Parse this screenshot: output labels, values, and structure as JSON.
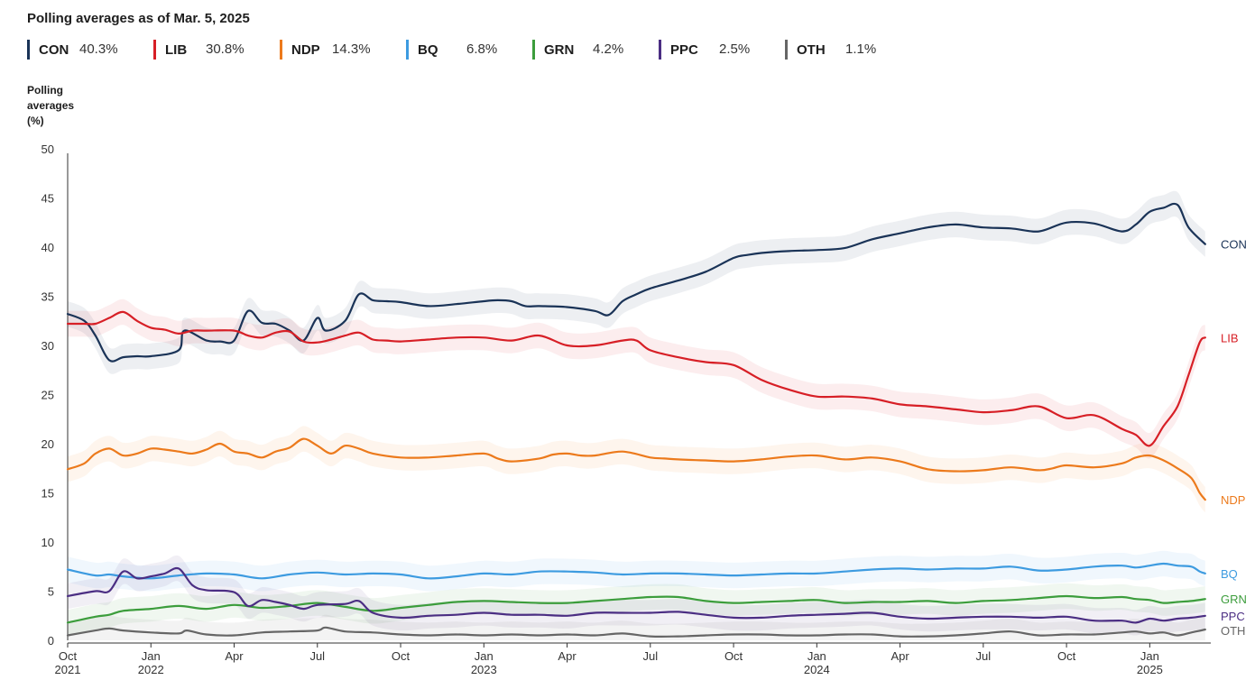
{
  "title": "Polling averages as of Mar. 5, 2025",
  "ylabel_lines": [
    "Polling",
    "averages",
    "(%)"
  ],
  "legend": [
    {
      "code": "CON",
      "value": "40.3%",
      "color": "#1a3357"
    },
    {
      "code": "LIB",
      "value": "30.8%",
      "color": "#d71f26"
    },
    {
      "code": "NDP",
      "value": "14.3%",
      "color": "#ec7a1c"
    },
    {
      "code": "BQ",
      "value": "6.8%",
      "color": "#3d9be0"
    },
    {
      "code": "GRN",
      "value": "4.2%",
      "color": "#3c9d3c"
    },
    {
      "code": "PPC",
      "value": "2.5%",
      "color": "#4b2e83"
    },
    {
      "code": "OTH",
      "value": "1.1%",
      "color": "#666666"
    }
  ],
  "chart_data": {
    "type": "line",
    "title": "Polling averages as of Mar. 5, 2025",
    "ylabel": "Polling averages (%)",
    "ylim": [
      0,
      50
    ],
    "yticks": [
      "0",
      "5",
      "10",
      "15",
      "20",
      "25",
      "30",
      "35",
      "40",
      "45",
      "50"
    ],
    "xlim": [
      0,
      41.2
    ],
    "xticks": [
      {
        "pos": 0,
        "line1": "Oct",
        "line2": "2021"
      },
      {
        "pos": 3,
        "line1": "Jan",
        "line2": "2022"
      },
      {
        "pos": 6,
        "line1": "Apr",
        "line2": ""
      },
      {
        "pos": 9,
        "line1": "Jul",
        "line2": ""
      },
      {
        "pos": 12,
        "line1": "Oct",
        "line2": ""
      },
      {
        "pos": 15,
        "line1": "Jan",
        "line2": "2023"
      },
      {
        "pos": 18,
        "line1": "Apr",
        "line2": ""
      },
      {
        "pos": 21,
        "line1": "Jul",
        "line2": ""
      },
      {
        "pos": 24,
        "line1": "Oct",
        "line2": ""
      },
      {
        "pos": 27,
        "line1": "Jan",
        "line2": "2024"
      },
      {
        "pos": 30,
        "line1": "Apr",
        "line2": ""
      },
      {
        "pos": 33,
        "line1": "Jul",
        "line2": ""
      },
      {
        "pos": 36,
        "line1": "Oct",
        "line2": ""
      },
      {
        "pos": 39,
        "line1": "Jan",
        "line2": "2025"
      }
    ],
    "x_unit": "months since Oct 2021",
    "band_half_width": 1.3,
    "series": [
      {
        "name": "CON",
        "color": "#1a3357",
        "x": [
          0,
          0.6,
          1.0,
          1.5,
          2.0,
          2.5,
          3.0,
          4.0,
          4.2,
          5.0,
          5.5,
          6.0,
          6.5,
          7.0,
          7.5,
          8.0,
          8.5,
          9.0,
          9.3,
          10.0,
          10.5,
          11.0,
          11.5,
          12.0,
          13.0,
          14.0,
          15.0,
          15.5,
          16.0,
          16.5,
          17.0,
          18.0,
          19.0,
          19.5,
          20.0,
          20.5,
          21.0,
          22.0,
          23.0,
          24.0,
          24.5,
          25.0,
          26.0,
          27.0,
          28.0,
          29.0,
          30.0,
          31.0,
          32.0,
          33.0,
          34.0,
          35.0,
          36.0,
          37.0,
          38.0,
          38.5,
          39.0,
          39.5,
          40.0,
          40.4,
          41.0
        ],
        "values": [
          33.2,
          32.5,
          31.0,
          28.5,
          28.8,
          28.9,
          28.9,
          29.5,
          31.5,
          30.5,
          30.4,
          30.5,
          33.5,
          32.3,
          32.2,
          31.5,
          30.5,
          32.8,
          31.5,
          32.5,
          35.2,
          34.6,
          34.5,
          34.4,
          34.0,
          34.2,
          34.5,
          34.6,
          34.5,
          34.0,
          34.0,
          33.9,
          33.5,
          33.1,
          34.5,
          35.2,
          35.8,
          36.6,
          37.5,
          38.9,
          39.2,
          39.4,
          39.6,
          39.7,
          39.9,
          40.8,
          41.4,
          42.0,
          42.3,
          42.0,
          41.9,
          41.6,
          42.5,
          42.4,
          41.6,
          42.3,
          43.6,
          44.0,
          44.3,
          42.0,
          40.3
        ]
      },
      {
        "name": "LIB",
        "color": "#d71f26",
        "x": [
          0,
          0.6,
          1.0,
          1.5,
          2.0,
          2.5,
          3.0,
          3.5,
          4.0,
          4.5,
          5.0,
          6.0,
          6.5,
          7.0,
          7.5,
          8.0,
          8.5,
          9.0,
          9.5,
          10.0,
          10.5,
          11.0,
          11.5,
          12.0,
          13.0,
          14.0,
          15.0,
          16.0,
          17.0,
          18.0,
          19.0,
          20.0,
          20.5,
          21.0,
          22.0,
          23.0,
          24.0,
          25.0,
          26.0,
          27.0,
          28.0,
          29.0,
          30.0,
          31.0,
          32.0,
          33.0,
          34.0,
          35.0,
          36.0,
          37.0,
          38.0,
          38.5,
          39.0,
          39.5,
          40.0,
          40.4,
          40.8,
          41.0
        ],
        "values": [
          32.2,
          32.2,
          32.2,
          32.8,
          33.4,
          32.5,
          31.8,
          31.6,
          31.2,
          31.5,
          31.5,
          31.5,
          31.0,
          30.8,
          31.3,
          31.4,
          30.4,
          30.3,
          30.6,
          31.0,
          31.3,
          30.6,
          30.5,
          30.4,
          30.6,
          30.8,
          30.8,
          30.5,
          31.0,
          30.0,
          30.0,
          30.5,
          30.5,
          29.5,
          28.8,
          28.3,
          28.0,
          26.5,
          25.5,
          24.8,
          24.8,
          24.6,
          24.0,
          23.8,
          23.5,
          23.2,
          23.4,
          23.8,
          22.6,
          22.9,
          21.5,
          20.9,
          19.8,
          21.8,
          23.8,
          27.0,
          30.3,
          30.8
        ]
      },
      {
        "name": "NDP",
        "color": "#ec7a1c",
        "x": [
          0,
          0.6,
          1.0,
          1.5,
          2.0,
          2.5,
          3.0,
          3.5,
          4.0,
          4.5,
          5.0,
          5.5,
          6.0,
          6.5,
          7.0,
          7.5,
          8.0,
          8.5,
          9.0,
          9.5,
          10.0,
          10.5,
          11.0,
          12.0,
          13.0,
          14.0,
          15.0,
          15.5,
          16.0,
          17.0,
          17.5,
          18.0,
          18.5,
          19.0,
          20.0,
          21.0,
          21.5,
          22.0,
          23.0,
          24.0,
          25.0,
          26.0,
          27.0,
          28.0,
          29.0,
          30.0,
          31.0,
          32.0,
          33.0,
          34.0,
          35.0,
          35.5,
          36.0,
          37.0,
          38.0,
          38.5,
          39.0,
          39.5,
          40.0,
          40.5,
          40.8,
          41.0
        ],
        "values": [
          17.4,
          18.0,
          19.0,
          19.5,
          18.8,
          19.0,
          19.5,
          19.4,
          19.2,
          19.0,
          19.4,
          20.0,
          19.2,
          19.0,
          18.6,
          19.2,
          19.6,
          20.5,
          19.8,
          19.0,
          19.8,
          19.5,
          19.0,
          18.6,
          18.6,
          18.8,
          19.0,
          18.5,
          18.2,
          18.5,
          18.9,
          19.0,
          18.8,
          18.8,
          19.2,
          18.6,
          18.5,
          18.4,
          18.3,
          18.2,
          18.4,
          18.7,
          18.8,
          18.4,
          18.6,
          18.2,
          17.4,
          17.2,
          17.3,
          17.6,
          17.3,
          17.5,
          17.8,
          17.6,
          18.0,
          18.6,
          18.8,
          18.3,
          17.5,
          16.5,
          15.0,
          14.3
        ]
      },
      {
        "name": "BQ",
        "color": "#3d9be0",
        "x": [
          0,
          1.0,
          1.5,
          2.0,
          3.0,
          4.0,
          5.0,
          6.0,
          7.0,
          8.0,
          9.0,
          10.0,
          11.0,
          12.0,
          13.0,
          14.0,
          15.0,
          16.0,
          17.0,
          18.0,
          19.0,
          20.0,
          21.0,
          22.0,
          23.0,
          24.0,
          25.0,
          26.0,
          27.0,
          28.0,
          29.0,
          30.0,
          31.0,
          32.0,
          33.0,
          34.0,
          35.0,
          36.0,
          37.0,
          38.0,
          38.5,
          39.0,
          39.5,
          40.0,
          40.5,
          40.8,
          41.0
        ],
        "values": [
          7.2,
          6.6,
          6.7,
          6.5,
          6.3,
          6.6,
          6.8,
          6.7,
          6.3,
          6.7,
          6.9,
          6.7,
          6.8,
          6.7,
          6.3,
          6.5,
          6.8,
          6.7,
          7.0,
          7.0,
          6.9,
          6.7,
          6.8,
          6.8,
          6.7,
          6.6,
          6.7,
          6.8,
          6.8,
          7.0,
          7.2,
          7.3,
          7.2,
          7.3,
          7.3,
          7.5,
          7.1,
          7.2,
          7.5,
          7.6,
          7.4,
          7.6,
          7.8,
          7.6,
          7.5,
          7.0,
          6.8
        ]
      },
      {
        "name": "GRN",
        "color": "#3c9d3c",
        "x": [
          0,
          1.0,
          1.5,
          2.0,
          3.0,
          4.0,
          5.0,
          6.0,
          7.0,
          8.0,
          9.0,
          10.0,
          11.0,
          12.0,
          13.0,
          14.0,
          15.0,
          16.0,
          17.0,
          18.0,
          19.0,
          20.0,
          21.0,
          22.0,
          23.0,
          24.0,
          25.0,
          26.0,
          27.0,
          28.0,
          29.0,
          30.0,
          31.0,
          32.0,
          33.0,
          34.0,
          35.0,
          36.0,
          37.0,
          38.0,
          38.5,
          39.0,
          39.5,
          40.0,
          40.5,
          41.0
        ],
        "values": [
          1.8,
          2.4,
          2.6,
          3.0,
          3.2,
          3.5,
          3.2,
          3.6,
          3.3,
          3.5,
          3.8,
          3.4,
          3.0,
          3.3,
          3.6,
          3.9,
          4.0,
          3.9,
          3.8,
          3.8,
          4.0,
          4.2,
          4.4,
          4.4,
          4.0,
          3.8,
          3.9,
          4.0,
          4.1,
          3.8,
          3.9,
          3.9,
          4.0,
          3.8,
          4.0,
          4.1,
          4.3,
          4.5,
          4.3,
          4.4,
          4.2,
          4.1,
          3.8,
          3.9,
          4.0,
          4.2
        ]
      },
      {
        "name": "PPC",
        "color": "#4b2e83",
        "x": [
          0,
          1.0,
          1.5,
          2.0,
          2.5,
          3.0,
          3.5,
          4.0,
          4.5,
          5.0,
          6.0,
          6.5,
          7.0,
          7.5,
          8.0,
          8.5,
          9.0,
          10.0,
          10.5,
          11.0,
          12.0,
          13.0,
          14.0,
          15.0,
          16.0,
          17.0,
          18.0,
          19.0,
          20.0,
          21.0,
          22.0,
          23.0,
          24.0,
          25.0,
          26.0,
          27.0,
          28.0,
          29.0,
          30.0,
          31.0,
          32.0,
          33.0,
          34.0,
          35.0,
          36.0,
          37.0,
          38.0,
          38.5,
          39.0,
          39.5,
          40.0,
          40.5,
          41.0
        ],
        "values": [
          4.5,
          5.0,
          5.0,
          7.0,
          6.3,
          6.5,
          6.8,
          7.3,
          5.6,
          5.1,
          4.9,
          3.5,
          4.1,
          3.9,
          3.6,
          3.2,
          3.6,
          3.7,
          4.0,
          2.8,
          2.3,
          2.5,
          2.6,
          2.8,
          2.6,
          2.6,
          2.5,
          2.8,
          2.8,
          2.8,
          2.9,
          2.6,
          2.3,
          2.3,
          2.5,
          2.6,
          2.7,
          2.8,
          2.4,
          2.2,
          2.3,
          2.4,
          2.4,
          2.3,
          2.4,
          2.0,
          2.0,
          1.8,
          2.2,
          2.0,
          2.2,
          2.3,
          2.5
        ]
      },
      {
        "name": "OTH",
        "color": "#666666",
        "x": [
          0,
          1.0,
          1.5,
          2.0,
          3.0,
          4.0,
          4.3,
          5.0,
          6.0,
          7.0,
          8.0,
          9.0,
          9.3,
          10.0,
          11.0,
          12.0,
          13.0,
          14.0,
          15.0,
          16.0,
          17.0,
          18.0,
          19.0,
          20.0,
          21.0,
          22.0,
          23.0,
          24.0,
          25.0,
          26.0,
          27.0,
          28.0,
          29.0,
          30.0,
          31.0,
          32.0,
          33.0,
          34.0,
          35.0,
          36.0,
          37.0,
          38.0,
          38.5,
          39.0,
          39.5,
          40.0,
          40.5,
          41.0
        ],
        "values": [
          0.5,
          1.0,
          1.2,
          1.0,
          0.8,
          0.7,
          1.0,
          0.6,
          0.5,
          0.8,
          0.9,
          1.0,
          1.3,
          0.9,
          0.8,
          0.6,
          0.5,
          0.6,
          0.5,
          0.6,
          0.5,
          0.6,
          0.5,
          0.7,
          0.4,
          0.4,
          0.5,
          0.6,
          0.6,
          0.5,
          0.5,
          0.6,
          0.6,
          0.4,
          0.4,
          0.5,
          0.7,
          0.9,
          0.5,
          0.6,
          0.6,
          0.8,
          0.9,
          0.7,
          0.8,
          0.5,
          0.8,
          1.1
        ]
      }
    ]
  }
}
